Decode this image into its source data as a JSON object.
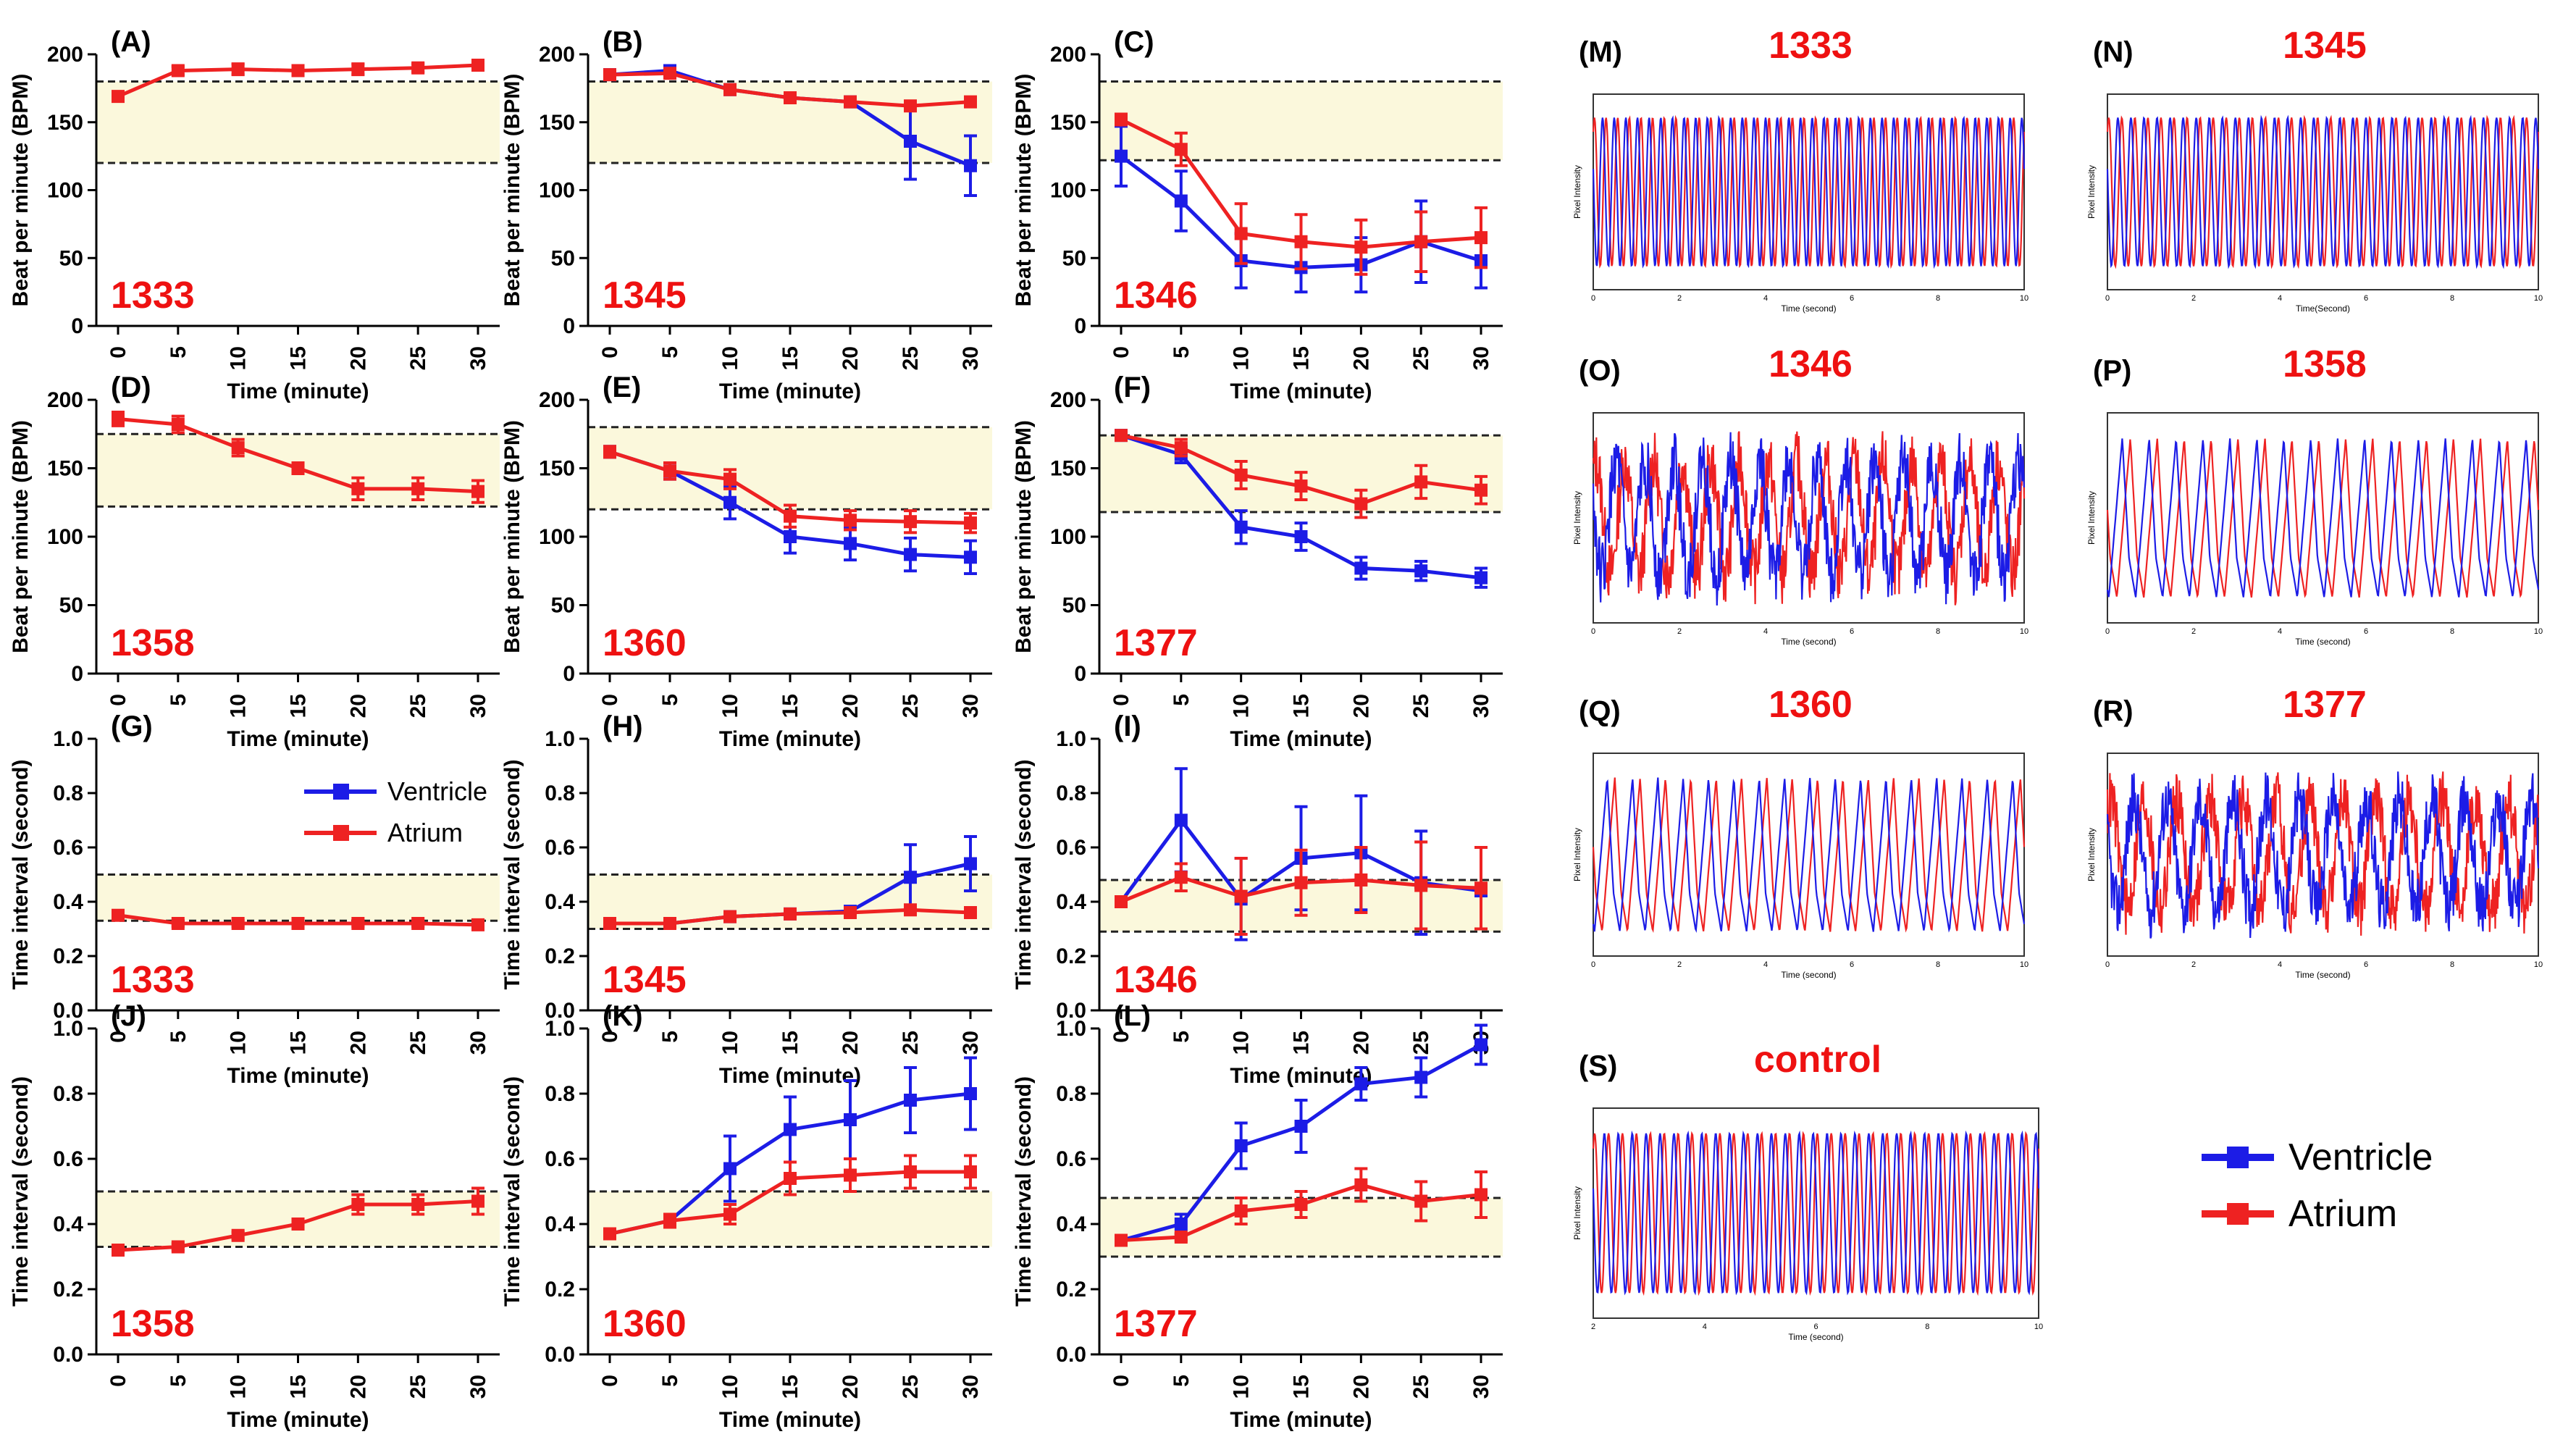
{
  "colors": {
    "ventricle": "#1c1ce6",
    "atrium": "#ee2222",
    "band": "#fbf8dc",
    "sample": "#ee1111",
    "axis": "#000000"
  },
  "figure_legend": {
    "ventricle": "Ventricle",
    "atrium": "Atrium"
  },
  "chart_data": [
    {
      "type": "line",
      "panel": "(A)",
      "sample": "1333",
      "xlabel": "Time (minute)",
      "ylabel": "Beat per minute (BPM)",
      "categories": [
        "0",
        "5",
        "10",
        "15",
        "20",
        "25",
        "30"
      ],
      "ylim": [
        0,
        200
      ],
      "yticks": [
        "0",
        "50",
        "100",
        "150",
        "200"
      ],
      "band": [
        120,
        180
      ],
      "series": [
        {
          "name": "Atrium",
          "values": [
            169,
            188,
            189,
            188,
            189,
            190,
            192
          ],
          "errors": [
            3,
            3,
            4,
            3,
            4,
            3,
            3
          ]
        }
      ]
    },
    {
      "type": "line",
      "panel": "(B)",
      "sample": "1345",
      "xlabel": "Time (minute)",
      "ylabel": "Beat per minute (BPM)",
      "categories": [
        "0",
        "5",
        "10",
        "15",
        "20",
        "25",
        "30"
      ],
      "ylim": [
        0,
        200
      ],
      "yticks": [
        "0",
        "50",
        "100",
        "150",
        "200"
      ],
      "band": [
        120,
        180
      ],
      "series": [
        {
          "name": "Ventricle",
          "values": [
            185,
            188,
            174,
            168,
            165,
            136,
            118
          ],
          "errors": [
            3,
            2,
            3,
            2,
            2,
            28,
            22
          ]
        },
        {
          "name": "Atrium",
          "values": [
            185,
            186,
            174,
            168,
            165,
            162,
            165
          ],
          "errors": [
            3,
            2,
            3,
            2,
            2,
            3,
            2
          ]
        }
      ]
    },
    {
      "type": "line",
      "panel": "(C)",
      "sample": "1346",
      "xlabel": "Time (minute)",
      "ylabel": "Beat per minute (BPM)",
      "categories": [
        "0",
        "5",
        "10",
        "15",
        "20",
        "25",
        "30"
      ],
      "ylim": [
        0,
        200
      ],
      "yticks": [
        "0",
        "50",
        "100",
        "150",
        "200"
      ],
      "band": [
        122,
        180
      ],
      "series": [
        {
          "name": "Ventricle",
          "values": [
            125,
            92,
            48,
            43,
            45,
            62,
            48
          ],
          "errors": [
            22,
            22,
            20,
            18,
            20,
            30,
            20
          ]
        },
        {
          "name": "Atrium",
          "values": [
            152,
            130,
            68,
            62,
            58,
            62,
            65
          ],
          "errors": [
            4,
            12,
            22,
            20,
            20,
            22,
            22
          ]
        }
      ]
    },
    {
      "type": "line",
      "panel": "(D)",
      "sample": "1358",
      "xlabel": "Time (minute)",
      "ylabel": "Beat per minute (BPM)",
      "categories": [
        "0",
        "5",
        "10",
        "15",
        "20",
        "25",
        "30"
      ],
      "ylim": [
        0,
        200
      ],
      "yticks": [
        "0",
        "50",
        "100",
        "150",
        "200"
      ],
      "band": [
        122,
        175
      ],
      "series": [
        {
          "name": "Atrium",
          "values": [
            186,
            182,
            165,
            150,
            135,
            135,
            133
          ],
          "errors": [
            5,
            6,
            6,
            4,
            8,
            8,
            8
          ]
        }
      ]
    },
    {
      "type": "line",
      "panel": "(E)",
      "sample": "1360",
      "xlabel": "Time (minute)",
      "ylabel": "Beat per minute (BPM)",
      "categories": [
        "0",
        "5",
        "10",
        "15",
        "20",
        "25",
        "30"
      ],
      "ylim": [
        0,
        200
      ],
      "yticks": [
        "0",
        "50",
        "100",
        "150",
        "200"
      ],
      "band": [
        120,
        180
      ],
      "series": [
        {
          "name": "Ventricle",
          "values": [
            162,
            148,
            125,
            100,
            95,
            87,
            85
          ],
          "errors": [
            4,
            6,
            12,
            12,
            12,
            12,
            12
          ]
        },
        {
          "name": "Atrium",
          "values": [
            162,
            148,
            142,
            115,
            112,
            111,
            110
          ],
          "errors": [
            4,
            6,
            7,
            8,
            7,
            8,
            7
          ]
        }
      ]
    },
    {
      "type": "line",
      "panel": "(F)",
      "sample": "1377",
      "xlabel": "Time (minute)",
      "ylabel": "Beat per minute (BPM)",
      "categories": [
        "0",
        "5",
        "10",
        "15",
        "20",
        "25",
        "30"
      ],
      "ylim": [
        0,
        200
      ],
      "yticks": [
        "0",
        "50",
        "100",
        "150",
        "200"
      ],
      "band": [
        118,
        174
      ],
      "series": [
        {
          "name": "Ventricle",
          "values": [
            174,
            160,
            107,
            100,
            77,
            75,
            70
          ],
          "errors": [
            3,
            6,
            12,
            10,
            8,
            7,
            7
          ]
        },
        {
          "name": "Atrium",
          "values": [
            174,
            165,
            145,
            137,
            124,
            140,
            134
          ],
          "errors": [
            3,
            6,
            10,
            10,
            10,
            12,
            10
          ]
        }
      ]
    },
    {
      "type": "line",
      "panel": "(G)",
      "sample": "1333",
      "xlabel": "Time (minute)",
      "ylabel": "Time interval (second)",
      "categories": [
        "0",
        "5",
        "10",
        "15",
        "20",
        "25",
        "30"
      ],
      "ylim": [
        0,
        1
      ],
      "yticks": [
        "0.0",
        "0.2",
        "0.4",
        "0.6",
        "0.8",
        "1.0"
      ],
      "band": [
        0.33,
        0.5
      ],
      "series": [
        {
          "name": "Atrium",
          "values": [
            0.35,
            0.32,
            0.32,
            0.32,
            0.32,
            0.32,
            0.315
          ],
          "errors": [
            0.01,
            0.01,
            0.01,
            0.01,
            0.01,
            0.01,
            0.01
          ]
        }
      ]
    },
    {
      "type": "line",
      "panel": "(H)",
      "sample": "1345",
      "xlabel": "Time (minute)",
      "ylabel": "Time interval (second)",
      "categories": [
        "0",
        "5",
        "10",
        "15",
        "20",
        "25",
        "30"
      ],
      "ylim": [
        0,
        1
      ],
      "yticks": [
        "0.0",
        "0.2",
        "0.4",
        "0.6",
        "0.8",
        "1.0"
      ],
      "band": [
        0.3,
        0.5
      ],
      "series": [
        {
          "name": "Ventricle",
          "values": [
            0.32,
            0.32,
            0.345,
            0.355,
            0.365,
            0.49,
            0.54
          ],
          "errors": [
            0.01,
            0.01,
            0.01,
            0.01,
            0.01,
            0.12,
            0.1
          ]
        },
        {
          "name": "Atrium",
          "values": [
            0.32,
            0.32,
            0.345,
            0.355,
            0.36,
            0.37,
            0.36
          ],
          "errors": [
            0.01,
            0.01,
            0.01,
            0.01,
            0.01,
            0.01,
            0.01
          ]
        }
      ]
    },
    {
      "type": "line",
      "panel": "(I)",
      "sample": "1346",
      "xlabel": "Time (minute)",
      "ylabel": "Time interval (second)",
      "categories": [
        "0",
        "5",
        "10",
        "15",
        "20",
        "25",
        "30"
      ],
      "ylim": [
        0,
        1
      ],
      "yticks": [
        "0.0",
        "0.2",
        "0.4",
        "0.6",
        "0.8",
        "1.0"
      ],
      "band": [
        0.29,
        0.48
      ],
      "series": [
        {
          "name": "Ventricle",
          "values": [
            0.4,
            0.7,
            0.41,
            0.56,
            0.58,
            0.47,
            0.44
          ],
          "errors": [
            0.01,
            0.19,
            0.15,
            0.19,
            0.21,
            0.19,
            0.01
          ]
        },
        {
          "name": "Atrium",
          "values": [
            0.4,
            0.49,
            0.42,
            0.47,
            0.48,
            0.46,
            0.45
          ],
          "errors": [
            0.01,
            0.05,
            0.14,
            0.12,
            0.12,
            0.16,
            0.15
          ]
        }
      ]
    },
    {
      "type": "line",
      "panel": "(J)",
      "sample": "1358",
      "xlabel": "Time (minute)",
      "ylabel": "Time interval (second)",
      "categories": [
        "0",
        "5",
        "10",
        "15",
        "20",
        "25",
        "30"
      ],
      "ylim": [
        0,
        1
      ],
      "yticks": [
        "0.0",
        "0.2",
        "0.4",
        "0.6",
        "0.8",
        "1.0"
      ],
      "band": [
        0.33,
        0.5
      ],
      "series": [
        {
          "name": "Atrium",
          "values": [
            0.32,
            0.33,
            0.365,
            0.4,
            0.46,
            0.46,
            0.47
          ],
          "errors": [
            0.01,
            0.01,
            0.01,
            0.01,
            0.03,
            0.03,
            0.04
          ]
        }
      ]
    },
    {
      "type": "line",
      "panel": "(K)",
      "sample": "1360",
      "xlabel": "Time (minute)",
      "ylabel": "Time interval (second)",
      "categories": [
        "0",
        "5",
        "10",
        "15",
        "20",
        "25",
        "30"
      ],
      "ylim": [
        0,
        1
      ],
      "yticks": [
        "0.0",
        "0.2",
        "0.4",
        "0.6",
        "0.8",
        "1.0"
      ],
      "band": [
        0.33,
        0.5
      ],
      "series": [
        {
          "name": "Ventricle",
          "values": [
            0.37,
            0.41,
            0.57,
            0.69,
            0.72,
            0.78,
            0.8
          ],
          "errors": [
            0.01,
            0.02,
            0.1,
            0.1,
            0.12,
            0.1,
            0.11
          ]
        },
        {
          "name": "Atrium",
          "values": [
            0.37,
            0.41,
            0.43,
            0.54,
            0.55,
            0.56,
            0.56
          ],
          "errors": [
            0.01,
            0.02,
            0.03,
            0.05,
            0.05,
            0.05,
            0.05
          ]
        }
      ]
    },
    {
      "type": "line",
      "panel": "(L)",
      "sample": "1377",
      "xlabel": "Time (minute)",
      "ylabel": "Time interval (second)",
      "categories": [
        "0",
        "5",
        "10",
        "15",
        "20",
        "25",
        "30"
      ],
      "ylim": [
        0,
        1
      ],
      "yticks": [
        "0.0",
        "0.2",
        "0.4",
        "0.6",
        "0.8",
        "1.0"
      ],
      "band": [
        0.3,
        0.48
      ],
      "series": [
        {
          "name": "Ventricle",
          "values": [
            0.35,
            0.4,
            0.64,
            0.7,
            0.83,
            0.85,
            0.95
          ],
          "errors": [
            0.01,
            0.03,
            0.07,
            0.08,
            0.05,
            0.06,
            0.06
          ]
        },
        {
          "name": "Atrium",
          "values": [
            0.35,
            0.36,
            0.44,
            0.46,
            0.52,
            0.47,
            0.49
          ],
          "errors": [
            0.01,
            0.01,
            0.04,
            0.04,
            0.05,
            0.06,
            0.07
          ]
        }
      ]
    }
  ],
  "waveforms": [
    {
      "panel": "(M)",
      "sample": "1333",
      "ylabel": "Pixel Intensity",
      "xlabel": "Time (second)",
      "xticks": [
        "0",
        "2",
        "4",
        "6",
        "8",
        "10"
      ],
      "cycles": 37,
      "variant": "regular"
    },
    {
      "panel": "(N)",
      "sample": "1345",
      "ylabel": "Pixel Intensity",
      "xlabel": "Time(Second)",
      "xticks": [
        "0",
        "2",
        "4",
        "6",
        "8",
        "10"
      ],
      "cycles": 33,
      "variant": "regular"
    },
    {
      "panel": "(O)",
      "sample": "1346",
      "ylabel": "Pixel Intensity",
      "xlabel": "Time (second)",
      "xticks": [
        "0",
        "2",
        "4",
        "6",
        "8",
        "10"
      ],
      "cycles": 15,
      "variant": "irregular"
    },
    {
      "panel": "(P)",
      "sample": "1358",
      "ylabel": "Pixel Intensity",
      "xlabel": "Time (second)",
      "xticks": [
        "0",
        "2",
        "4",
        "6",
        "8",
        "10"
      ],
      "cycles": 16,
      "variant": "spiky"
    },
    {
      "panel": "(Q)",
      "sample": "1360",
      "ylabel": "Pixel Intensity",
      "xlabel": "Time (second)",
      "xticks": [
        "0",
        "2",
        "4",
        "6",
        "8",
        "10"
      ],
      "cycles": 17,
      "variant": "spiky"
    },
    {
      "panel": "(R)",
      "sample": "1377",
      "ylabel": "Pixel Intensity",
      "xlabel": "Time (second)",
      "xticks": [
        "0",
        "2",
        "4",
        "6",
        "8",
        "10"
      ],
      "cycles": 13,
      "variant": "irregular"
    },
    {
      "panel": "(S)",
      "sample": "control",
      "ylabel": "Pixel Intensity",
      "xlabel": "Time (second)",
      "xticks": [
        "2",
        "4",
        "6",
        "8",
        "10"
      ],
      "cycles": 32,
      "variant": "regular"
    }
  ]
}
